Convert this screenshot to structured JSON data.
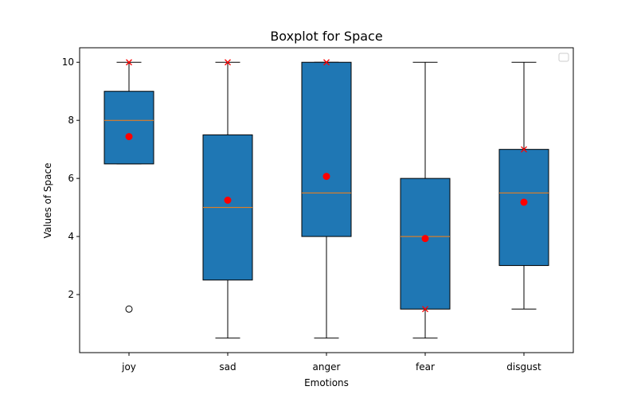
{
  "chart_data": {
    "type": "boxplot",
    "title": "Boxplot for Space",
    "xlabel": "Emotions",
    "ylabel": "Values of Space",
    "categories": [
      "joy",
      "sad",
      "anger",
      "fear",
      "disgust"
    ],
    "y_ticks": [
      2,
      4,
      6,
      8,
      10
    ],
    "ylim": [
      0.0,
      10.5
    ],
    "boxes": [
      {
        "category": "joy",
        "whislo": 6.5,
        "q1": 6.5,
        "median": 8.0,
        "q3": 9.0,
        "whishi": 10.0,
        "mean": 7.44,
        "outliers": [
          1.5
        ],
        "marked_x": [
          10.0
        ]
      },
      {
        "category": "sad",
        "whislo": 0.5,
        "q1": 2.5,
        "median": 5.0,
        "q3": 7.5,
        "whishi": 10.0,
        "mean": 5.25,
        "outliers": [],
        "marked_x": [
          10.0
        ]
      },
      {
        "category": "anger",
        "whislo": 0.5,
        "q1": 4.0,
        "median": 5.5,
        "q3": 10.0,
        "whishi": 10.0,
        "mean": 6.07,
        "outliers": [],
        "marked_x": [
          10.0
        ]
      },
      {
        "category": "fear",
        "whislo": 0.5,
        "q1": 1.5,
        "median": 4.0,
        "q3": 6.0,
        "whishi": 10.0,
        "mean": 3.93,
        "outliers": [],
        "marked_x": [
          1.5
        ]
      },
      {
        "category": "disgust",
        "whislo": 1.5,
        "q1": 3.0,
        "median": 5.5,
        "q3": 7.0,
        "whishi": 10.0,
        "mean": 5.18,
        "outliers": [],
        "marked_x": [
          7.0
        ]
      }
    ],
    "legend": {
      "placement": "top-right",
      "entries": []
    },
    "grid": false,
    "colors": {
      "box_fill": "#1f77b4",
      "median": "#ff7f0e",
      "mean_marker": "#ff0000",
      "x_marker": "#ff0000",
      "outline": "#000000"
    }
  }
}
